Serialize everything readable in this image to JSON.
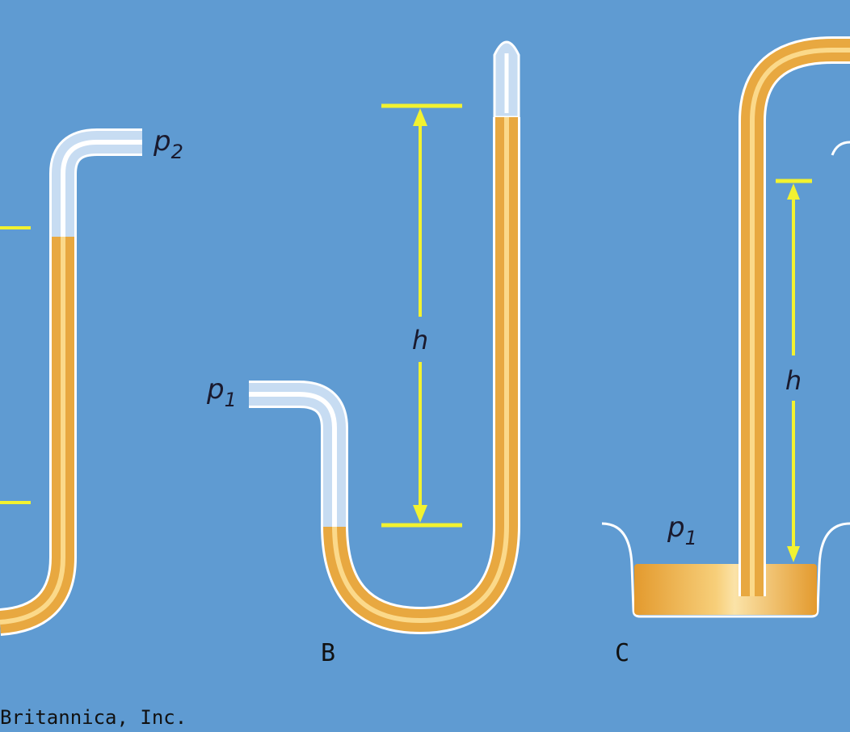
{
  "colors": {
    "background": "#5f9bd2",
    "mercury": "#e8a840",
    "mercury_highlight": "#fbd98a",
    "gas": "#c7dcf2",
    "gas_highlight": "#ffffff",
    "tube_outline": "#ffffff",
    "measure_line": "#f2f230",
    "text": "#1a1a2e"
  },
  "diagram": {
    "panel_a": {
      "pressure_label": "p",
      "pressure_subscript": "2"
    },
    "panel_b": {
      "caption": "B",
      "pressure_label": "p",
      "pressure_subscript": "1",
      "height_label": "h"
    },
    "panel_c": {
      "caption": "C",
      "pressure_label": "p",
      "pressure_subscript": "1",
      "height_label": "h"
    },
    "credit": "Britannica, Inc."
  }
}
